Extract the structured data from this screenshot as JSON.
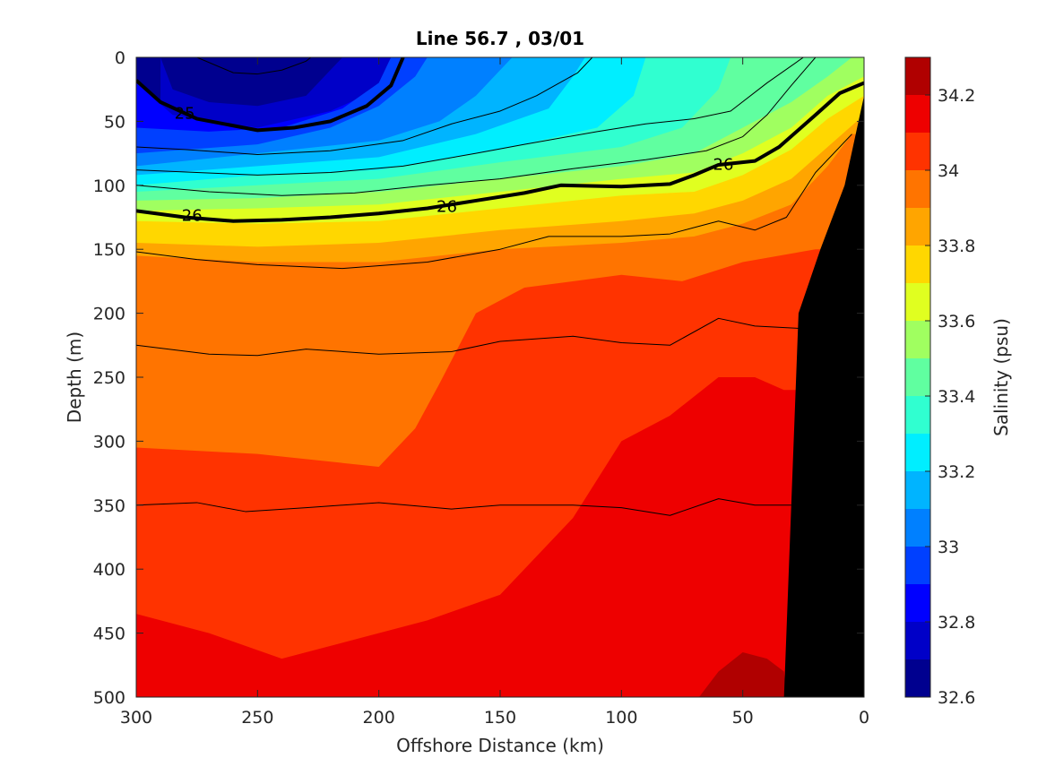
{
  "chart_data": {
    "type": "heatmap",
    "title": "Line 56.7 , 03/01",
    "xlabel": "Offshore Distance (km)",
    "ylabel": "Depth (m)",
    "colorbar_label": "Salinity (psu)",
    "xlim": [
      300,
      0
    ],
    "ylim": [
      0,
      500
    ],
    "x_reversed": true,
    "y_reversed": true,
    "x_ticks": [
      "300",
      "250",
      "200",
      "150",
      "100",
      "50",
      "0"
    ],
    "y_ticks": [
      "0",
      "50",
      "100",
      "150",
      "200",
      "250",
      "300",
      "350",
      "400",
      "450",
      "500"
    ],
    "colorbar_range": [
      32.6,
      34.3
    ],
    "colorbar_ticks": [
      "32.6",
      "32.8",
      "33",
      "33.2",
      "33.4",
      "33.6",
      "33.8",
      "34",
      "34.2"
    ],
    "colorbar_levels": [
      {
        "from": 32.6,
        "to": 32.7,
        "color": "#00008f"
      },
      {
        "from": 32.7,
        "to": 32.8,
        "color": "#0000c8"
      },
      {
        "from": 32.8,
        "to": 32.9,
        "color": "#0000ff"
      },
      {
        "from": 32.9,
        "to": 33.0,
        "color": "#0040ff"
      },
      {
        "from": 33.0,
        "to": 33.1,
        "color": "#0080ff"
      },
      {
        "from": 33.1,
        "to": 33.2,
        "color": "#00b4ff"
      },
      {
        "from": 33.2,
        "to": 33.3,
        "color": "#00eeff"
      },
      {
        "from": 33.3,
        "to": 33.4,
        "color": "#30ffd0"
      },
      {
        "from": 33.4,
        "to": 33.5,
        "color": "#60ffa0"
      },
      {
        "from": 33.5,
        "to": 33.6,
        "color": "#a0ff60"
      },
      {
        "from": 33.6,
        "to": 33.7,
        "color": "#e0ff20"
      },
      {
        "from": 33.7,
        "to": 33.8,
        "color": "#ffd700"
      },
      {
        "from": 33.8,
        "to": 33.9,
        "color": "#ffa500"
      },
      {
        "from": 33.9,
        "to": 34.0,
        "color": "#ff7400"
      },
      {
        "from": 34.0,
        "to": 34.1,
        "color": "#ff3300"
      },
      {
        "from": 34.1,
        "to": 34.2,
        "color": "#ee0000"
      },
      {
        "from": 34.2,
        "to": 34.3,
        "color": "#b00000"
      }
    ],
    "bands": [
      {
        "value": 34.1,
        "boundary": [
          [
            300,
            435
          ],
          [
            270,
            450
          ],
          [
            240,
            470
          ],
          [
            210,
            455
          ],
          [
            180,
            440
          ],
          [
            150,
            420
          ],
          [
            120,
            360
          ],
          [
            100,
            300
          ],
          [
            80,
            280
          ],
          [
            60,
            250
          ],
          [
            45,
            250
          ],
          [
            33,
            260
          ]
        ]
      },
      {
        "value": 34.0,
        "boundary": [
          [
            300,
            305
          ],
          [
            250,
            310
          ],
          [
            200,
            320
          ],
          [
            185,
            290
          ],
          [
            175,
            255
          ],
          [
            160,
            200
          ],
          [
            140,
            180
          ],
          [
            100,
            170
          ],
          [
            75,
            175
          ],
          [
            50,
            160
          ],
          [
            35,
            155
          ],
          [
            20,
            150
          ]
        ]
      },
      {
        "value": 33.9,
        "boundary": [
          [
            300,
            155
          ],
          [
            250,
            160
          ],
          [
            200,
            160
          ],
          [
            150,
            150
          ],
          [
            100,
            145
          ],
          [
            70,
            140
          ],
          [
            50,
            130
          ],
          [
            30,
            115
          ],
          [
            15,
            85
          ],
          [
            5,
            60
          ]
        ]
      },
      {
        "value": 33.8,
        "boundary": [
          [
            300,
            145
          ],
          [
            250,
            148
          ],
          [
            200,
            145
          ],
          [
            150,
            135
          ],
          [
            100,
            128
          ],
          [
            70,
            122
          ],
          [
            50,
            112
          ],
          [
            30,
            95
          ],
          [
            15,
            70
          ],
          [
            3,
            50
          ]
        ]
      },
      {
        "value": 33.7,
        "boundary": [
          [
            300,
            128
          ],
          [
            250,
            130
          ],
          [
            200,
            128
          ],
          [
            150,
            118
          ],
          [
            100,
            108
          ],
          [
            70,
            105
          ],
          [
            50,
            92
          ],
          [
            30,
            72
          ],
          [
            15,
            48
          ],
          [
            0,
            30
          ]
        ]
      },
      {
        "value": 33.6,
        "boundary": [
          [
            300,
            120
          ],
          [
            250,
            118
          ],
          [
            200,
            115
          ],
          [
            150,
            105
          ],
          [
            100,
            95
          ],
          [
            70,
            90
          ],
          [
            50,
            75
          ],
          [
            30,
            55
          ],
          [
            15,
            30
          ],
          [
            0,
            15
          ]
        ]
      },
      {
        "value": 33.5,
        "boundary": [
          [
            300,
            112
          ],
          [
            250,
            110
          ],
          [
            200,
            105
          ],
          [
            150,
            95
          ],
          [
            100,
            85
          ],
          [
            70,
            75
          ],
          [
            50,
            55
          ],
          [
            30,
            35
          ],
          [
            15,
            15
          ],
          [
            5,
            0
          ]
        ]
      },
      {
        "value": 33.4,
        "boundary": [
          [
            300,
            105
          ],
          [
            250,
            100
          ],
          [
            200,
            95
          ],
          [
            150,
            82
          ],
          [
            100,
            70
          ],
          [
            75,
            55
          ],
          [
            60,
            25
          ],
          [
            55,
            0
          ]
        ]
      },
      {
        "value": 33.3,
        "boundary": [
          [
            300,
            100
          ],
          [
            250,
            92
          ],
          [
            200,
            88
          ],
          [
            150,
            72
          ],
          [
            110,
            55
          ],
          [
            95,
            30
          ],
          [
            90,
            0
          ]
        ]
      },
      {
        "value": 33.2,
        "boundary": [
          [
            300,
            92
          ],
          [
            250,
            85
          ],
          [
            200,
            78
          ],
          [
            160,
            60
          ],
          [
            130,
            40
          ],
          [
            120,
            15
          ],
          [
            115,
            0
          ]
        ]
      },
      {
        "value": 33.1,
        "boundary": [
          [
            300,
            85
          ],
          [
            250,
            75
          ],
          [
            200,
            65
          ],
          [
            175,
            50
          ],
          [
            160,
            30
          ],
          [
            150,
            10
          ],
          [
            145,
            0
          ]
        ]
      },
      {
        "value": 33.0,
        "boundary": [
          [
            300,
            75
          ],
          [
            250,
            68
          ],
          [
            220,
            55
          ],
          [
            200,
            38
          ],
          [
            185,
            15
          ],
          [
            180,
            0
          ]
        ]
      },
      {
        "value": 32.9,
        "boundary": [
          [
            300,
            55
          ],
          [
            270,
            58
          ],
          [
            240,
            55
          ],
          [
            215,
            40
          ],
          [
            200,
            20
          ],
          [
            195,
            0
          ]
        ]
      },
      {
        "value": 32.8,
        "boundary": [
          [
            300,
            20
          ],
          [
            285,
            45
          ],
          [
            250,
            55
          ],
          [
            220,
            42
          ],
          [
            200,
            25
          ],
          [
            192,
            0
          ]
        ]
      },
      {
        "value": 32.7,
        "boundary": [
          [
            290,
            0
          ],
          [
            285,
            25
          ],
          [
            270,
            35
          ],
          [
            250,
            38
          ],
          [
            230,
            30
          ],
          [
            220,
            10
          ],
          [
            215,
            0
          ]
        ]
      }
    ],
    "patches": [
      {
        "value": 34.2,
        "polygon": [
          [
            68,
            500
          ],
          [
            60,
            480
          ],
          [
            50,
            465
          ],
          [
            40,
            470
          ],
          [
            33,
            480
          ],
          [
            32,
            500
          ]
        ]
      },
      {
        "value": 33.9,
        "polygon": [
          [
            242,
            262
          ],
          [
            240,
            255
          ],
          [
            238,
            265
          ],
          [
            240,
            272
          ]
        ]
      }
    ],
    "contours": [
      {
        "label": "25",
        "bold": true,
        "points": [
          [
            300,
            18
          ],
          [
            290,
            35
          ],
          [
            275,
            48
          ],
          [
            250,
            57
          ],
          [
            235,
            55
          ],
          [
            220,
            50
          ],
          [
            205,
            38
          ],
          [
            195,
            22
          ],
          [
            190,
            0
          ]
        ],
        "label_at": [
          280,
          43
        ]
      },
      {
        "label": "26",
        "bold": true,
        "points": [
          [
            300,
            120
          ],
          [
            280,
            125
          ],
          [
            260,
            128
          ],
          [
            240,
            127
          ],
          [
            220,
            125
          ],
          [
            200,
            122
          ],
          [
            180,
            118
          ],
          [
            160,
            112
          ],
          [
            140,
            106
          ],
          [
            125,
            100
          ],
          [
            100,
            101
          ],
          [
            80,
            99
          ],
          [
            70,
            92
          ],
          [
            60,
            84
          ],
          [
            45,
            81
          ],
          [
            35,
            70
          ],
          [
            20,
            45
          ],
          [
            10,
            28
          ],
          [
            0,
            20
          ]
        ],
        "label_at": [
          172,
          116
        ],
        "label_at_2": [
          58,
          83
        ],
        "label_at_3": [
          277,
          123
        ]
      },
      {
        "label": "",
        "bold": false,
        "points": [
          [
            275,
            0
          ],
          [
            260,
            12
          ],
          [
            250,
            13
          ],
          [
            240,
            10
          ],
          [
            230,
            3
          ],
          [
            228,
            0
          ]
        ]
      },
      {
        "label": "",
        "bold": false,
        "points": [
          [
            300,
            70
          ],
          [
            280,
            72
          ],
          [
            250,
            76
          ],
          [
            220,
            73
          ],
          [
            190,
            65
          ],
          [
            170,
            52
          ],
          [
            150,
            42
          ],
          [
            135,
            30
          ],
          [
            118,
            12
          ],
          [
            112,
            0
          ]
        ]
      },
      {
        "label": "",
        "bold": false,
        "points": [
          [
            300,
            88
          ],
          [
            275,
            90
          ],
          [
            250,
            92
          ],
          [
            220,
            90
          ],
          [
            190,
            85
          ],
          [
            160,
            75
          ],
          [
            140,
            68
          ],
          [
            110,
            58
          ],
          [
            90,
            52
          ],
          [
            70,
            48
          ],
          [
            55,
            42
          ],
          [
            40,
            20
          ],
          [
            25,
            0
          ]
        ]
      },
      {
        "label": "",
        "bold": false,
        "points": [
          [
            300,
            100
          ],
          [
            270,
            105
          ],
          [
            240,
            108
          ],
          [
            210,
            106
          ],
          [
            180,
            100
          ],
          [
            150,
            95
          ],
          [
            120,
            87
          ],
          [
            90,
            80
          ],
          [
            65,
            73
          ],
          [
            50,
            62
          ],
          [
            40,
            45
          ],
          [
            30,
            22
          ],
          [
            20,
            0
          ]
        ]
      },
      {
        "label": "",
        "bold": false,
        "points": [
          [
            300,
            152
          ],
          [
            275,
            158
          ],
          [
            250,
            162
          ],
          [
            215,
            165
          ],
          [
            180,
            160
          ],
          [
            150,
            150
          ],
          [
            130,
            140
          ],
          [
            100,
            140
          ],
          [
            80,
            138
          ],
          [
            60,
            128
          ],
          [
            45,
            135
          ],
          [
            32,
            125
          ],
          [
            20,
            90
          ],
          [
            5,
            60
          ]
        ]
      },
      {
        "label": "",
        "bold": false,
        "points": [
          [
            300,
            225
          ],
          [
            270,
            232
          ],
          [
            250,
            233
          ],
          [
            230,
            228
          ],
          [
            200,
            232
          ],
          [
            170,
            230
          ],
          [
            150,
            222
          ],
          [
            120,
            218
          ],
          [
            100,
            223
          ],
          [
            80,
            225
          ],
          [
            60,
            204
          ],
          [
            45,
            210
          ],
          [
            25,
            212
          ]
        ]
      },
      {
        "label": "",
        "bold": false,
        "points": [
          [
            300,
            350
          ],
          [
            275,
            348
          ],
          [
            255,
            355
          ],
          [
            230,
            352
          ],
          [
            200,
            348
          ],
          [
            170,
            353
          ],
          [
            150,
            350
          ],
          [
            120,
            350
          ],
          [
            100,
            352
          ],
          [
            80,
            358
          ],
          [
            60,
            345
          ],
          [
            45,
            350
          ],
          [
            30,
            350
          ]
        ]
      }
    ],
    "seafloor": [
      [
        33,
        500
      ],
      [
        27,
        200
      ],
      [
        18,
        150
      ],
      [
        8,
        100
      ],
      [
        0,
        30
      ],
      [
        0,
        500
      ]
    ]
  }
}
